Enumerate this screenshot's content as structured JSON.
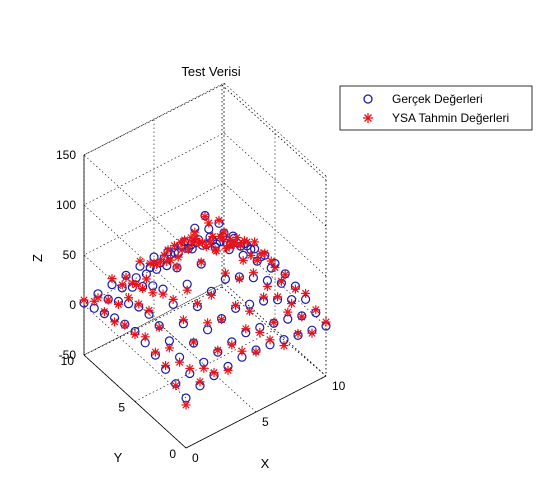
{
  "chart_data": {
    "type": "scatter",
    "title": "Test Verisi",
    "xlabel": "X",
    "ylabel": "Y",
    "zlabel": "Z",
    "xlim": [
      0,
      10
    ],
    "ylim": [
      0,
      10
    ],
    "zlim": [
      -50,
      150
    ],
    "xticks": [
      "0",
      "5",
      "10"
    ],
    "yticks": [
      "0",
      "5",
      "10"
    ],
    "zticks": [
      "-50",
      "0",
      "50",
      "100",
      "150"
    ],
    "grid": true,
    "legend_position": "top-right",
    "series": [
      {
        "name": "Gerçek Değerleri",
        "marker": "circle",
        "color": "#1a1aa6"
      },
      {
        "name": "YSA Tahmin Değerleri",
        "marker": "asterisk",
        "color": "#e8141c"
      }
    ],
    "grid_points": {
      "x_start": 0,
      "x_step": 1,
      "x_count": 11,
      "y_start": 0,
      "y_step": 1,
      "y_count": 11
    },
    "z_values": [
      [
        0,
        5,
        10,
        15,
        18,
        20,
        18,
        15,
        10,
        6,
        2
      ],
      [
        5,
        8,
        15,
        22,
        28,
        30,
        28,
        22,
        15,
        8,
        4
      ],
      [
        8,
        12,
        22,
        32,
        42,
        48,
        42,
        32,
        22,
        12,
        6
      ],
      [
        10,
        15,
        28,
        42,
        55,
        62,
        55,
        42,
        28,
        15,
        8
      ],
      [
        12,
        18,
        32,
        50,
        68,
        78,
        68,
        50,
        32,
        18,
        10
      ],
      [
        12,
        20,
        35,
        55,
        78,
        100,
        78,
        55,
        35,
        20,
        12
      ],
      [
        10,
        18,
        32,
        50,
        68,
        85,
        70,
        50,
        32,
        18,
        10
      ],
      [
        8,
        15,
        28,
        42,
        55,
        65,
        55,
        42,
        28,
        15,
        8
      ],
      [
        5,
        12,
        22,
        32,
        42,
        48,
        42,
        32,
        22,
        12,
        5
      ],
      [
        3,
        8,
        15,
        22,
        28,
        30,
        28,
        22,
        15,
        8,
        3
      ],
      [
        0,
        4,
        8,
        12,
        15,
        16,
        15,
        12,
        8,
        4,
        0
      ]
    ],
    "prediction_offsets": [
      3,
      -4,
      6,
      -2,
      5,
      -6,
      2,
      -3,
      4,
      -5,
      1,
      7,
      -1,
      3,
      -7,
      4
    ]
  }
}
